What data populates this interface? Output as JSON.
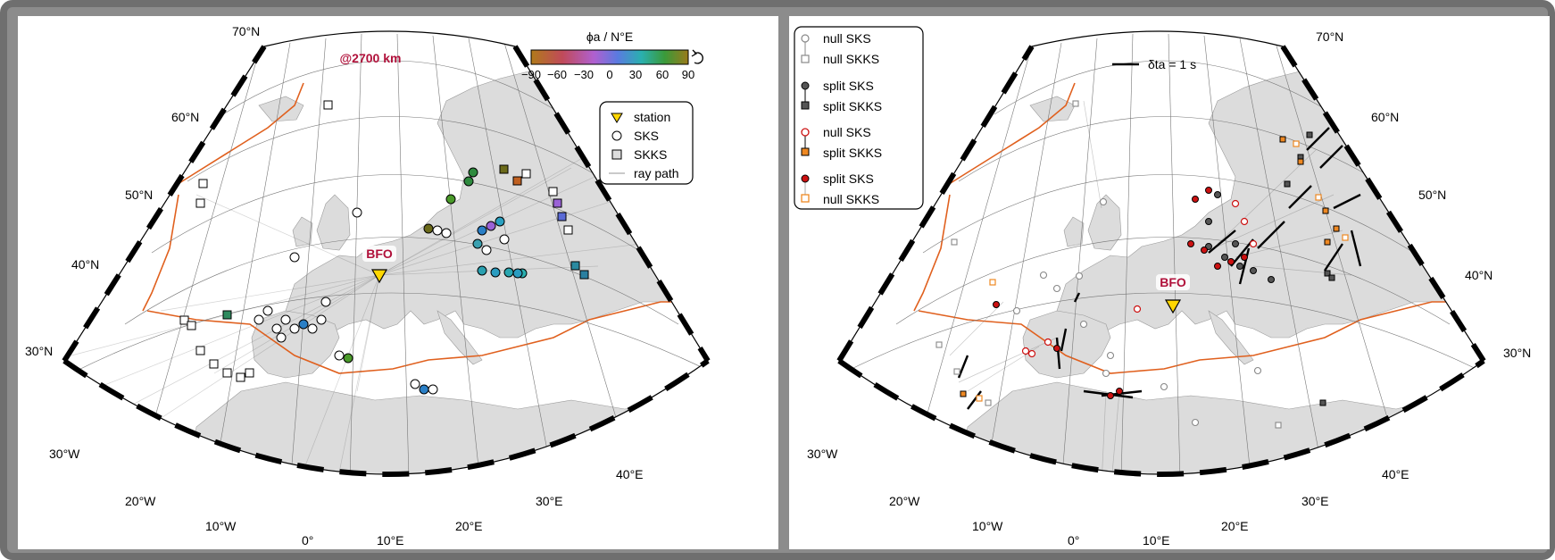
{
  "left_panel": {
    "depth_label": "@2700 km",
    "station_label": "BFO",
    "colorbar": {
      "title": "ϕa / N°E",
      "ticks": [
        "−90",
        "−60",
        "−30",
        "0",
        "30",
        "60",
        "90"
      ],
      "cyclic_icon": "cyclic-arrow-icon"
    },
    "legend": {
      "items": [
        {
          "label": "station",
          "icon": "triangle-icon"
        },
        {
          "label": "SKS",
          "icon": "circle-icon"
        },
        {
          "label": "SKKS",
          "icon": "square-icon"
        },
        {
          "label": "ray path",
          "icon": "line-icon"
        }
      ]
    },
    "lat_labels": [
      "70°N",
      "60°N",
      "50°N",
      "40°N",
      "30°N"
    ],
    "lon_labels": [
      "30°W",
      "20°W",
      "10°W",
      "0°",
      "10°E",
      "20°E",
      "30°E",
      "40°E"
    ]
  },
  "right_panel": {
    "station_label": "BFO",
    "scale_label": "δta = 1 s",
    "legend": {
      "items": [
        {
          "label": "null SKS",
          "icon": "gray-open-circle-icon"
        },
        {
          "label": "null SKKS",
          "icon": "gray-open-square-icon"
        },
        {
          "label": "split SKS",
          "icon": "dark-circle-icon"
        },
        {
          "label": "split SKKS",
          "icon": "dark-square-icon"
        },
        {
          "label": "null SKS",
          "icon": "red-open-circle-icon"
        },
        {
          "label": "split SKKS",
          "icon": "orange-square-icon"
        },
        {
          "label": "split SKS",
          "icon": "red-circle-icon"
        },
        {
          "label": "null SKKS",
          "icon": "orange-open-square-icon"
        }
      ]
    },
    "lat_labels": [
      "70°N",
      "60°N",
      "50°N",
      "40°N",
      "30°N"
    ],
    "lon_labels": [
      "30°W",
      "20°W",
      "10°W",
      "0°",
      "10°E",
      "20°E",
      "30°E",
      "40°E"
    ]
  },
  "colors": {
    "land": "#dcdcdc",
    "plate_boundary": "#e0601e",
    "station": "#ffd700",
    "depth_label": "#b0103a",
    "null_red": "#cc1111",
    "null_orange": "#ee8822",
    "split_dark": "#555555"
  }
}
